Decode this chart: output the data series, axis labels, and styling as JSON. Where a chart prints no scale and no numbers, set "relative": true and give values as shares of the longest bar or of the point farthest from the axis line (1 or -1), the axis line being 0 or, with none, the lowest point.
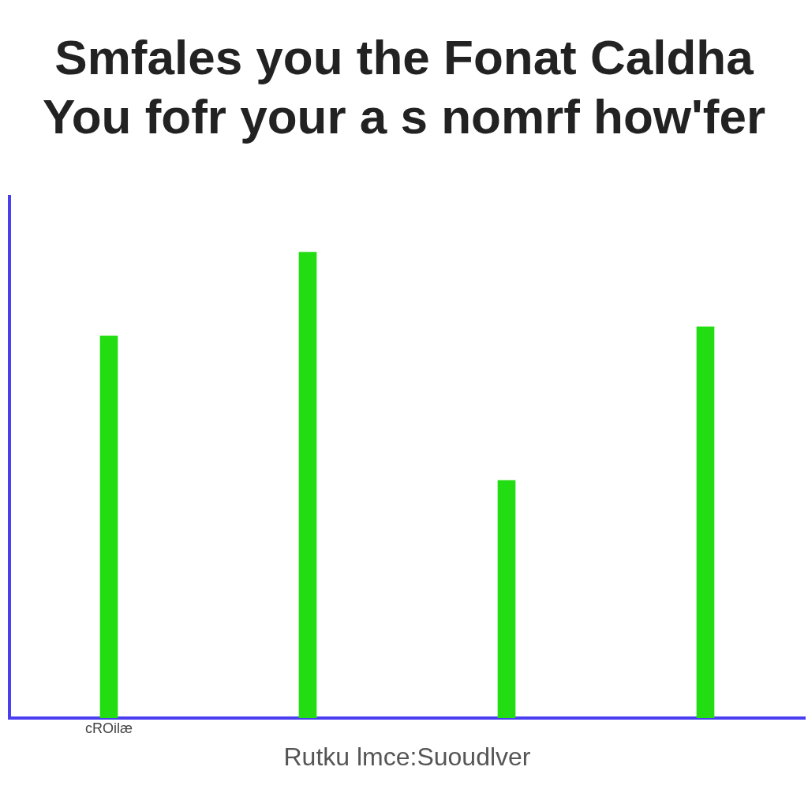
{
  "chart_data": {
    "type": "bar",
    "title": [
      "Smfales you the Fonat Caldha",
      "You fofr your a s nomrf how'fer"
    ],
    "xlabel": "Rutku lmce:Suoudlver",
    "relative": true,
    "grid": false,
    "legend": false,
    "categories": [
      "cROilæ",
      null,
      null,
      null
    ],
    "values": [
      0.82,
      1,
      0.51,
      0.84
    ],
    "color": "#22dd11"
  }
}
